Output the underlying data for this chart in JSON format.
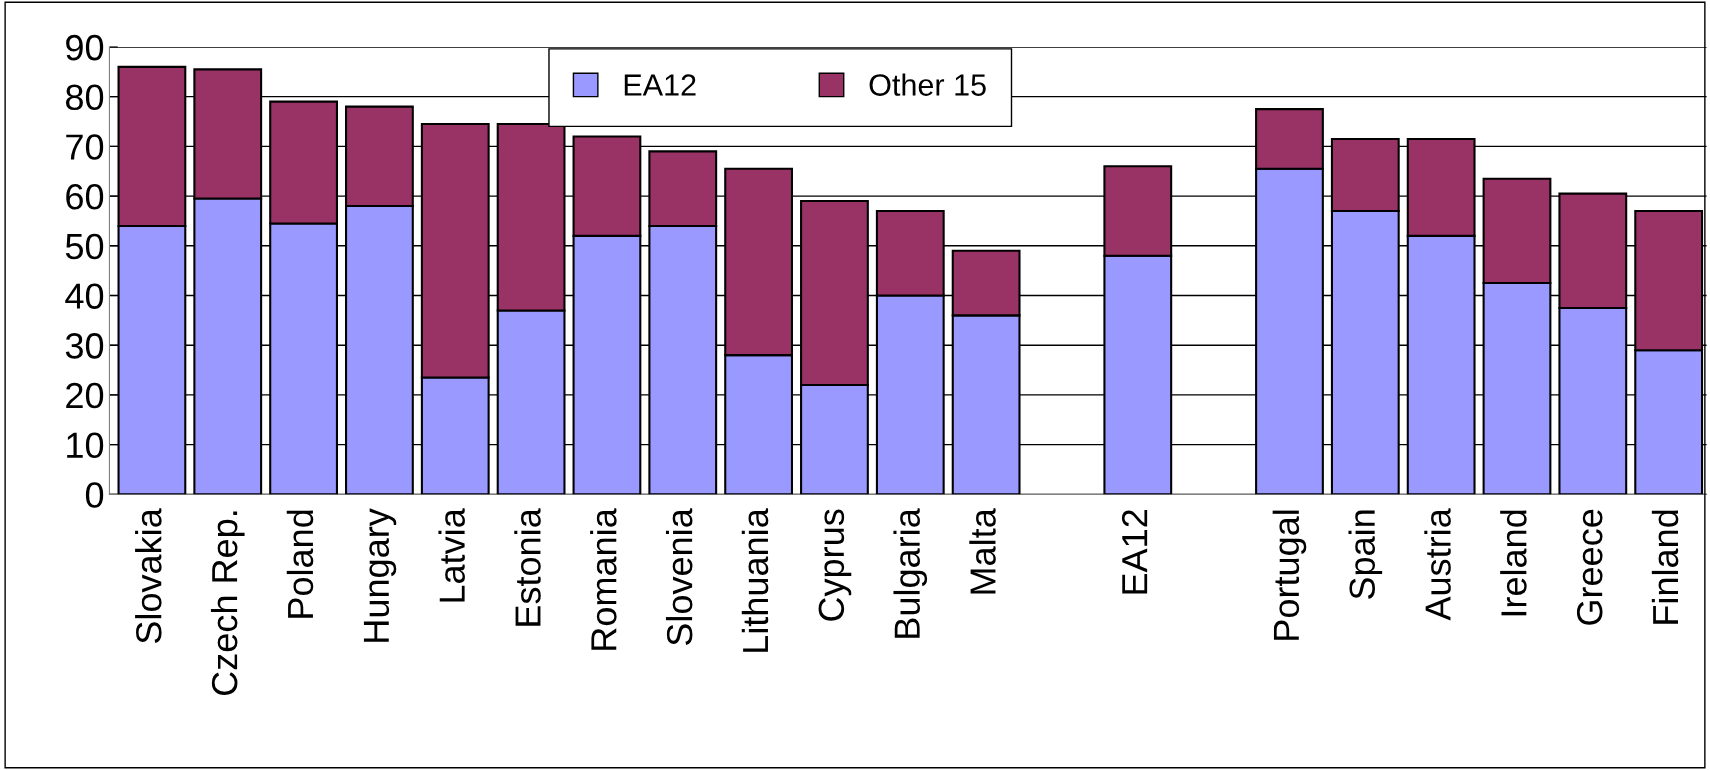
{
  "chart_data": {
    "type": "bar",
    "stacked": true,
    "categories": [
      "Slovakia",
      "Czech Rep.",
      "Poland",
      "Hungary",
      "Latvia",
      "Estonia",
      "Romania",
      "Slovenia",
      "Lithuania",
      "Cyprus",
      "Bulgaria",
      "Malta",
      null,
      "EA12",
      null,
      "Portugal",
      "Spain",
      "Austria",
      "Ireland",
      "Greece",
      "Finland"
    ],
    "series": [
      {
        "name": "EA12",
        "color": "#9999ff",
        "values": [
          54,
          59.5,
          54.5,
          58,
          23.5,
          37,
          52,
          54,
          28,
          22,
          40,
          36,
          null,
          48,
          null,
          65.5,
          57,
          52,
          42.5,
          37.5,
          29
        ]
      },
      {
        "name": "Other 15",
        "color": "#993366",
        "values": [
          32,
          26,
          24.5,
          20,
          51,
          37.5,
          20,
          15,
          37.5,
          37,
          17,
          13,
          null,
          18,
          null,
          12,
          14.5,
          19.5,
          21,
          23,
          28
        ]
      }
    ],
    "ylim": [
      0,
      90
    ],
    "yticks": [
      0,
      10,
      20,
      30,
      40,
      50,
      60,
      70,
      80,
      90
    ],
    "grid": "y",
    "legend": "top"
  }
}
